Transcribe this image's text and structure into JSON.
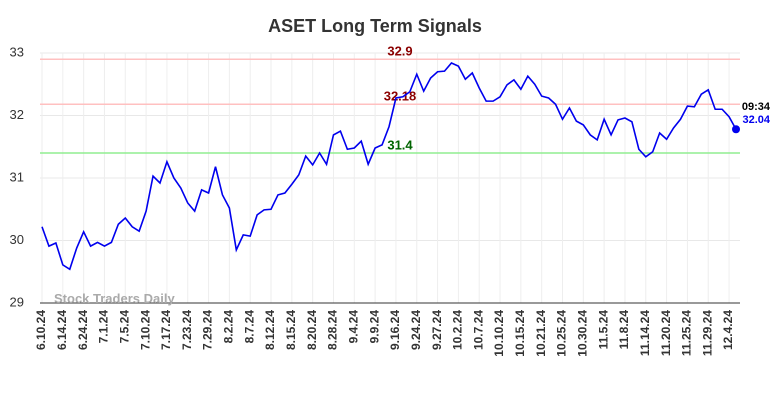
{
  "chart_data": {
    "type": "line",
    "title": "ASET Long Term Signals",
    "watermark": "Stock Traders Daily",
    "categories": [
      "6.10.24",
      null,
      null,
      "6.14.24",
      null,
      null,
      "6.24.24",
      null,
      null,
      "7.1.24",
      null,
      null,
      "7.5.24",
      null,
      null,
      "7.10.24",
      null,
      null,
      "7.17.24",
      null,
      null,
      "7.23.24",
      null,
      null,
      "7.29.24",
      null,
      null,
      "8.2.24",
      null,
      null,
      "8.7.24",
      null,
      null,
      "8.12.24",
      null,
      null,
      "8.15.24",
      null,
      null,
      "8.20.24",
      null,
      null,
      "8.28.24",
      null,
      null,
      "9.4.24",
      null,
      null,
      "9.9.24",
      null,
      null,
      "9.16.24",
      null,
      null,
      "9.24.24",
      null,
      null,
      "9.27.24",
      null,
      null,
      "10.2.24",
      null,
      null,
      "10.7.24",
      null,
      null,
      "10.10.24",
      null,
      null,
      "10.15.24",
      null,
      null,
      "10.21.24",
      null,
      null,
      "10.25.24",
      null,
      null,
      "10.30.24",
      null,
      null,
      "11.5.24",
      null,
      null,
      "11.8.24",
      null,
      null,
      "11.14.24",
      null,
      null,
      "11.20.24",
      null,
      null,
      "11.25.24",
      null,
      null,
      "11.29.24",
      null,
      null,
      "12.4.24",
      null
    ],
    "series": [
      {
        "name": "ASET",
        "color": "#0000ee",
        "values": [
          30.22,
          29.91,
          29.96,
          29.61,
          29.54,
          29.88,
          30.14,
          29.91,
          29.97,
          29.91,
          29.97,
          30.26,
          30.36,
          30.22,
          30.15,
          30.47,
          31.03,
          30.92,
          31.26,
          31.0,
          30.84,
          30.6,
          30.47,
          30.81,
          30.76,
          31.18,
          30.73,
          30.52,
          29.85,
          30.09,
          30.07,
          30.41,
          30.49,
          30.5,
          30.73,
          30.76,
          30.9,
          31.05,
          31.35,
          31.21,
          31.4,
          31.22,
          31.69,
          31.75,
          31.46,
          31.48,
          31.59,
          31.22,
          31.48,
          31.53,
          31.82,
          32.28,
          32.3,
          32.38,
          32.66,
          32.39,
          32.6,
          32.7,
          32.71,
          32.84,
          32.79,
          32.58,
          32.68,
          32.44,
          32.23,
          32.23,
          32.3,
          32.49,
          32.57,
          32.42,
          32.63,
          32.5,
          32.31,
          32.28,
          32.18,
          31.94,
          32.12,
          31.91,
          31.85,
          31.69,
          31.61,
          31.94,
          31.69,
          31.93,
          31.96,
          31.9,
          31.46,
          31.34,
          31.42,
          31.72,
          31.62,
          31.8,
          31.94,
          32.15,
          32.14,
          32.34,
          32.41,
          32.1,
          32.1,
          31.98,
          31.78
        ]
      }
    ],
    "hlines": [
      {
        "value": 32.9,
        "color": "#ffc0c0",
        "label_color": "#8b0000"
      },
      {
        "value": 32.18,
        "color": "#ffc0c0",
        "label_color": "#8b0000"
      },
      {
        "value": 31.4,
        "color": "#90ee90",
        "label_color": "#006400"
      }
    ],
    "last_time": "09:34",
    "last_price": "32.04",
    "ylim": [
      29,
      33
    ],
    "yticks": [
      29,
      30,
      31,
      32,
      33
    ],
    "grid": true
  }
}
